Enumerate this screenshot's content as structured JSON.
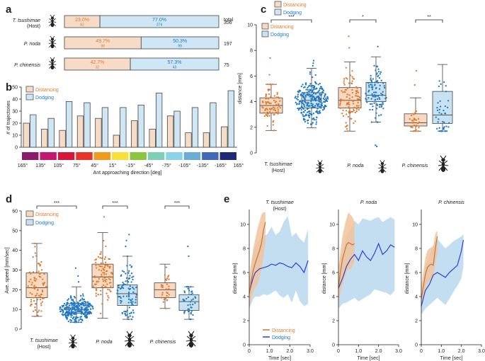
{
  "colors": {
    "distancing": "#e07a2e",
    "distancing_fill": "#f8d9bf",
    "dodging": "#1f78c4",
    "dodging_fill": "#c9e2f2",
    "line_distancing": "#c2763a",
    "line_dodging": "#2b3fd9",
    "band_distancing": "#f2c39a",
    "band_dodging": "#b9d8ee",
    "bar_distancing": "#f6dcc6",
    "bar_dodging": "#cfe6f4"
  },
  "chart_data": [
    {
      "panel": "a",
      "type": "bar",
      "orientation": "horizontal-stacked",
      "legend": [
        "Distancing",
        "Dodging"
      ],
      "total_label": "total",
      "species": [
        {
          "name": "T. tsushimae",
          "sub": "(Host)",
          "distancing_pct": "23.0%",
          "distancing_n": "82",
          "dodging_pct": "77.0%",
          "dodging_n": "274",
          "total": "356",
          "distancing_frac": 0.23
        },
        {
          "name": "P. noda",
          "sub": "",
          "distancing_pct": "49.7%",
          "distancing_n": "98",
          "dodging_pct": "50.3%",
          "dodging_n": "99",
          "total": "197",
          "distancing_frac": 0.497
        },
        {
          "name": "P. chinensis",
          "sub": "",
          "distancing_pct": "42.7%",
          "distancing_n": "32",
          "dodging_pct": "57.3%",
          "dodging_n": "43",
          "total": "75",
          "distancing_frac": 0.427
        }
      ]
    },
    {
      "panel": "b",
      "type": "bar",
      "ylabel": "# of trajectories",
      "xlabel": "Ant approaching direction [deg]",
      "ylim": [
        0,
        50
      ],
      "yticks": [
        "0",
        "10",
        "20",
        "30",
        "40",
        "50"
      ],
      "xticks": [
        "165°",
        "135°",
        "105°",
        "75°",
        "45°",
        "15°",
        "-15°",
        "-45°",
        "-75°",
        "-105°",
        "-135°",
        "-165°",
        "165°"
      ],
      "legend": [
        "Distancing",
        "Dodging"
      ],
      "series": [
        {
          "name": "Distancing",
          "values": [
            20,
            15,
            14,
            26,
            24,
            10,
            22,
            15,
            26,
            12,
            12,
            17
          ]
        },
        {
          "name": "Dodging",
          "values": [
            27,
            24,
            38,
            37,
            33,
            33,
            35,
            45,
            30,
            33,
            37,
            47
          ]
        }
      ],
      "direction_colors": [
        "#8b1a6b",
        "#c2186f",
        "#d71537",
        "#e8332a",
        "#f29a1e",
        "#f7e03a",
        "#8cc63f",
        "#7dcfb6",
        "#8ad3e8",
        "#6aaed6",
        "#4169b8",
        "#1e2a78"
      ]
    },
    {
      "panel": "c",
      "type": "scatter",
      "subtype": "box-swarm",
      "ylabel": "distance [mm]",
      "ylim": [
        0,
        10
      ],
      "yticks": [
        "0",
        "2",
        "4",
        "6",
        "8",
        "10"
      ],
      "legend": [
        "Distancing",
        "Dodging"
      ],
      "species_labels": [
        "T. tsushimae",
        "(Host)",
        "P. noda",
        "P. chinensis"
      ],
      "significance": [
        "***",
        "*",
        "**"
      ],
      "groups": [
        {
          "species": "T. tsushimae",
          "behavior": "Distancing",
          "n": 82,
          "q1": 3.1,
          "median": 3.7,
          "q3": 4.3,
          "wlo": 1.75,
          "whi": 5.35,
          "outliers": [
            6.1,
            7.4
          ]
        },
        {
          "species": "T. tsushimae",
          "behavior": "Dodging",
          "n": 274,
          "q1": 3.5,
          "median": 4.1,
          "q3": 4.7,
          "wlo": 1.95,
          "whi": 6.6,
          "outliers": [
            6.8,
            7.0,
            7.2
          ]
        },
        {
          "species": "P. noda",
          "behavior": "Distancing",
          "n": 98,
          "q1": 3.5,
          "median": 4.1,
          "q3": 5.1,
          "wlo": 1.7,
          "whi": 7.1,
          "outliers": [
            8.2,
            9.1
          ]
        },
        {
          "species": "P. noda",
          "behavior": "Dodging",
          "n": 99,
          "q1": 4.0,
          "median": 4.5,
          "q3": 5.5,
          "wlo": 2.4,
          "whi": 7.5,
          "outliers": [
            8.3,
            0.5,
            0.6
          ]
        },
        {
          "species": "P. chinensis",
          "behavior": "Distancing",
          "n": 32,
          "q1": 2.1,
          "median": 2.35,
          "q3": 3.05,
          "wlo": 1.7,
          "whi": 4.3,
          "outliers": [
            5.3,
            6.4
          ]
        },
        {
          "species": "P. chinensis",
          "behavior": "Dodging",
          "n": 43,
          "q1": 2.3,
          "median": 2.95,
          "q3": 4.8,
          "wlo": 1.7,
          "whi": 6.9,
          "outliers": []
        }
      ]
    },
    {
      "panel": "d",
      "type": "scatter",
      "subtype": "box-swarm",
      "ylabel": "Ave. speed [mm/sec]",
      "ylim": [
        0,
        60
      ],
      "yticks": [
        "0",
        "10",
        "20",
        "30",
        "40",
        "50",
        "60"
      ],
      "legend": [
        "Distancing",
        "Dodging"
      ],
      "species_labels": [
        "T. tsushimae",
        "(Host)",
        "P. noda",
        "P. chinensis"
      ],
      "significance": [
        "***",
        "***",
        "***"
      ],
      "groups": [
        {
          "species": "T. tsushimae",
          "behavior": "Distancing",
          "n": 82,
          "q1": 16,
          "median": 21,
          "q3": 28.5,
          "wlo": 6.5,
          "whi": 43.5,
          "outliers": []
        },
        {
          "species": "T. tsushimae",
          "behavior": "Dodging",
          "n": 274,
          "q1": 8,
          "median": 10,
          "q3": 13,
          "wlo": 3.5,
          "whi": 21.5,
          "outliers": [
            24,
            27,
            31
          ]
        },
        {
          "species": "P. noda",
          "behavior": "Distancing",
          "n": 98,
          "q1": 21,
          "median": 26.5,
          "q3": 33,
          "wlo": 5.5,
          "whi": 49,
          "outliers": [
            57
          ]
        },
        {
          "species": "P. noda",
          "behavior": "Dodging",
          "n": 99,
          "q1": 12,
          "median": 18,
          "q3": 22.5,
          "wlo": 5,
          "whi": 37,
          "outliers": [
            42,
            45,
            48
          ]
        },
        {
          "species": "P. chinensis",
          "behavior": "Distancing",
          "n": 32,
          "q1": 16,
          "median": 20,
          "q3": 23.5,
          "wlo": 10.5,
          "whi": 33,
          "outliers": []
        },
        {
          "species": "P. chinensis",
          "behavior": "Dodging",
          "n": 43,
          "q1": 9.5,
          "median": 14,
          "q3": 17.5,
          "wlo": 5,
          "whi": 21.5,
          "outliers": [
            37,
            42
          ]
        }
      ]
    },
    {
      "panel": "e",
      "type": "line",
      "ylabel": "distance [mm]",
      "xlabel": "Time [sec]",
      "ylim": [
        0,
        11
      ],
      "yticks": [
        "0",
        "2",
        "4",
        "6",
        "8",
        "10"
      ],
      "legend": [
        "Distancing",
        "Dodging"
      ],
      "subplots": [
        {
          "title": "T. tsushimae",
          "subtitle": "(Host)",
          "xlim": [
            0,
            3
          ],
          "xticks": [
            "0",
            "1.0",
            "2.0",
            "3.0"
          ],
          "distancing": {
            "x": [
              0,
              0.1,
              0.2,
              0.3,
              0.4,
              0.5,
              0.6,
              0.7,
              0.8
            ],
            "y": [
              4.2,
              5.3,
              6.2,
              6.8,
              7.3,
              7.8,
              8.4,
              9.5,
              10.2
            ],
            "lo": [
              3.0,
              3.8,
              4.4,
              4.8,
              5.0,
              5.6,
              6.2,
              7.4,
              8.5
            ],
            "hi": [
              5.5,
              6.8,
              8.0,
              8.8,
              9.6,
              10.2,
              10.8,
              11.0,
              11.0
            ]
          },
          "dodging": {
            "x": [
              0,
              0.1,
              0.2,
              0.3,
              0.5,
              0.7,
              0.9,
              1.1,
              1.3,
              1.5,
              1.7,
              1.9,
              2.1,
              2.3,
              2.5,
              2.7,
              2.9
            ],
            "y": [
              4.3,
              5.0,
              5.6,
              6.0,
              6.3,
              6.4,
              6.5,
              6.7,
              6.6,
              6.8,
              6.7,
              6.5,
              6.4,
              6.8,
              6.5,
              6.0,
              7.0
            ],
            "lo": [
              3.0,
              3.4,
              3.8,
              4.0,
              4.0,
              4.2,
              4.1,
              4.3,
              4.5,
              4.1,
              3.9,
              4.2,
              3.5,
              4.5,
              3.6,
              3.2,
              3.4
            ],
            "hi": [
              5.5,
              6.8,
              7.6,
              8.2,
              8.7,
              9.0,
              9.2,
              9.8,
              9.1,
              9.4,
              10.2,
              10.7,
              9.0,
              9.3,
              8.8,
              8.5,
              9.6
            ]
          }
        },
        {
          "title": "P. noda",
          "subtitle": "",
          "xlim": [
            0,
            3
          ],
          "xticks": [
            "0",
            "1.0",
            "2.0",
            "3.0"
          ],
          "distancing": {
            "x": [
              0,
              0.1,
              0.2,
              0.3,
              0.4,
              0.5,
              0.6,
              0.7,
              0.8
            ],
            "y": [
              4.8,
              6.0,
              7.1,
              7.7,
              8.3,
              8.5,
              8.4,
              8.3,
              8.4
            ],
            "lo": [
              3.5,
              4.3,
              5.0,
              5.5,
              6.0,
              6.3,
              6.2,
              6.5,
              7.0
            ],
            "hi": [
              6.2,
              7.8,
              9.0,
              9.8,
              10.5,
              11.0,
              10.8,
              10.6,
              10.2
            ]
          },
          "dodging": {
            "x": [
              0,
              0.2,
              0.4,
              0.6,
              0.8,
              1.0,
              1.2,
              1.4,
              1.6,
              1.8,
              2.0,
              2.2,
              2.4,
              2.6,
              2.8
            ],
            "y": [
              4.7,
              5.5,
              6.5,
              7.1,
              7.5,
              7.0,
              7.8,
              7.3,
              7.0,
              7.6,
              8.4,
              7.5,
              7.8,
              8.3,
              8.1
            ],
            "lo": [
              3.0,
              3.4,
              3.5,
              3.7,
              3.9,
              3.6,
              3.8,
              4.0,
              4.2,
              4.6,
              4.5,
              4.4,
              4.3,
              4.1,
              4.5
            ],
            "hi": [
              6.5,
              7.8,
              9.0,
              9.6,
              10.3,
              10.0,
              10.5,
              10.4,
              10.3,
              10.5,
              10.6,
              10.2,
              10.4,
              10.6,
              10.4
            ]
          }
        },
        {
          "title": "P. chinensis",
          "subtitle": "",
          "xlim": [
            0,
            3
          ],
          "xticks": [
            "0",
            "1.0",
            "2.0",
            "3.0"
          ],
          "distancing": {
            "x": [
              0,
              0.1,
              0.2,
              0.3,
              0.4,
              0.5,
              0.6,
              0.7,
              0.8
            ],
            "y": [
              3.8,
              4.8,
              5.8,
              6.4,
              6.6,
              6.7,
              6.6,
              8.0,
              9.0
            ],
            "lo": [
              3.0,
              3.8,
              4.6,
              5.1,
              5.3,
              5.4,
              5.6,
              6.8,
              7.6
            ],
            "hi": [
              4.8,
              6.0,
              7.2,
              7.8,
              8.0,
              8.1,
              8.2,
              9.2,
              9.5
            ]
          },
          "dodging": {
            "x": [
              0,
              0.2,
              0.4,
              0.6,
              0.8,
              1.0,
              1.2,
              1.4,
              1.6,
              1.8,
              2.0,
              2.1
            ],
            "y": [
              3.2,
              4.5,
              5.0,
              5.8,
              6.0,
              5.8,
              5.6,
              6.0,
              6.3,
              6.6,
              7.8,
              8.7
            ],
            "lo": [
              2.5,
              3.0,
              3.3,
              3.6,
              3.9,
              3.6,
              3.3,
              3.8,
              4.4,
              4.9,
              5.5,
              6.5
            ],
            "hi": [
              4.0,
              6.5,
              7.3,
              8.3,
              8.8,
              8.4,
              8.0,
              8.3,
              8.6,
              8.8,
              9.0,
              9.2
            ]
          }
        }
      ]
    }
  ]
}
